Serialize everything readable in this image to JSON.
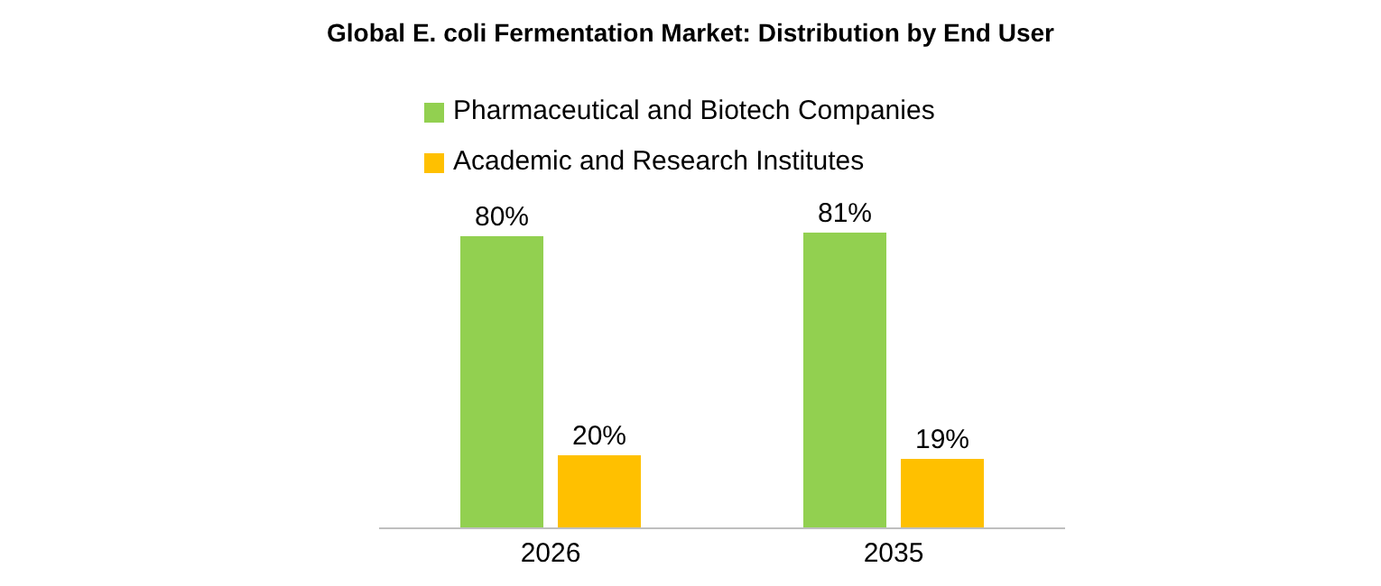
{
  "chart_data": {
    "type": "bar",
    "title": "Global E. coli Fermentation Market: Distribution by End User",
    "categories": [
      "2026",
      "2035"
    ],
    "series": [
      {
        "name": "Pharmaceutical and Biotech Companies",
        "color": "#92d050",
        "values": [
          80,
          81
        ],
        "value_labels": [
          "80%",
          "81%"
        ]
      },
      {
        "name": "Academic and Research Institutes",
        "color": "#ffc000",
        "values": [
          20,
          19
        ],
        "value_labels": [
          "20%",
          "19%"
        ]
      }
    ],
    "legend": "top left",
    "grid": false
  }
}
